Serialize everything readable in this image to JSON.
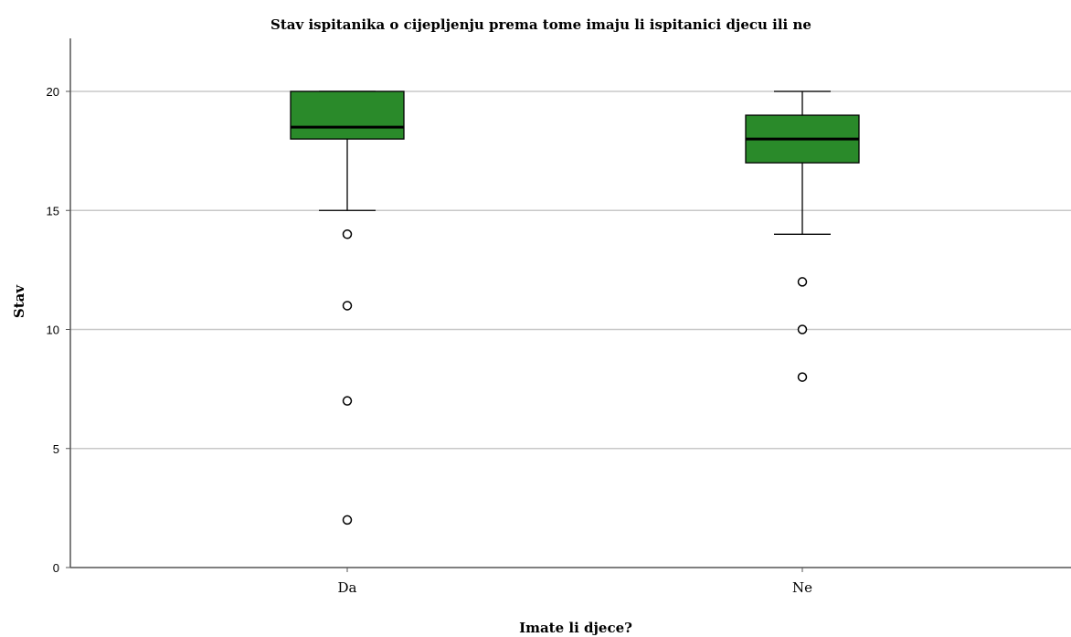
{
  "chart_data": {
    "type": "boxplot",
    "title": "Stav ispitanika o cijepljenju prema tome imaju li ispitanici djecu ili ne",
    "xlabel": "Imate li djece?",
    "ylabel": "Stav",
    "ylim": [
      0,
      22
    ],
    "yticks": [
      0,
      5,
      10,
      15,
      20
    ],
    "grid": true,
    "categories": [
      "Da",
      "Ne"
    ],
    "boxes": [
      {
        "category": "Da",
        "whisker_low": 15,
        "q1": 18,
        "median": 18.5,
        "q3": 20,
        "whisker_high": 20,
        "outliers": [
          14,
          11,
          7,
          2
        ]
      },
      {
        "category": "Ne",
        "whisker_low": 14,
        "q1": 17,
        "median": 18,
        "q3": 19,
        "whisker_high": 20,
        "outliers": [
          12,
          10,
          8
        ]
      }
    ],
    "colors": {
      "box_fill": "#2a8a2a",
      "box_stroke": "#000000",
      "grid": "#c8c8c8",
      "axis": "#000000"
    }
  }
}
